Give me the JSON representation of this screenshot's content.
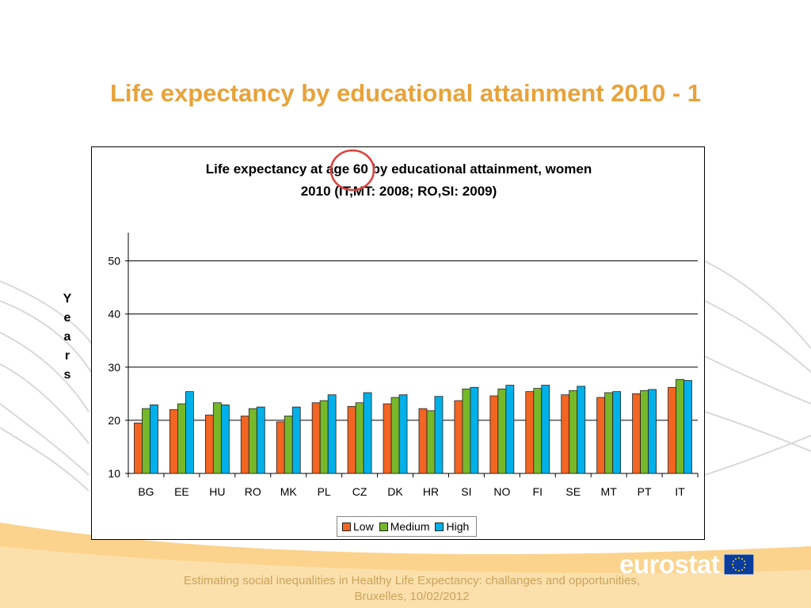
{
  "slide": {
    "title": "Life expectancy by educational attainment 2010 - 1",
    "footer": "Estimating social inequalities in Healthy Life Expectancy: challanges and opportunities, Bruxelles, 10/02/2012",
    "logo_text": "eurostat"
  },
  "colors": {
    "title": "#E8A23A",
    "footer": "#C9A35C",
    "band": "#FBD38D",
    "low": "#F26522",
    "medium": "#76B82A",
    "high": "#00B0E8",
    "annotation_circle": "#E0403A"
  },
  "chart_data": {
    "type": "bar",
    "title_line1": "Life expectancy at age 60 by educational attainment, women",
    "title_line2": "2010 (IT,MT: 2008; RO,SI: 2009)",
    "ylabel": "Years",
    "ylim": [
      10,
      55
    ],
    "yticks": [
      10,
      20,
      30,
      40,
      50
    ],
    "grid": true,
    "legend_position": "bottom",
    "categories": [
      "BG",
      "EE",
      "HU",
      "RO",
      "MK",
      "PL",
      "CZ",
      "DK",
      "HR",
      "SI",
      "NO",
      "FI",
      "SE",
      "MT",
      "PT",
      "IT"
    ],
    "series": [
      {
        "name": "Low",
        "values": [
          19.5,
          22.0,
          21.0,
          20.8,
          19.7,
          23.3,
          22.6,
          23.1,
          22.2,
          23.7,
          24.6,
          25.4,
          24.8,
          24.3,
          25.0,
          26.2
        ]
      },
      {
        "name": "Medium",
        "values": [
          22.2,
          23.1,
          23.3,
          22.2,
          20.8,
          23.7,
          23.3,
          24.3,
          21.8,
          25.9,
          25.9,
          26.0,
          25.6,
          25.2,
          25.6,
          27.7
        ]
      },
      {
        "name": "High",
        "values": [
          22.9,
          25.4,
          22.9,
          22.5,
          22.5,
          24.8,
          25.2,
          24.8,
          24.5,
          26.2,
          26.6,
          26.6,
          26.4,
          25.4,
          25.8,
          27.5
        ]
      }
    ]
  }
}
